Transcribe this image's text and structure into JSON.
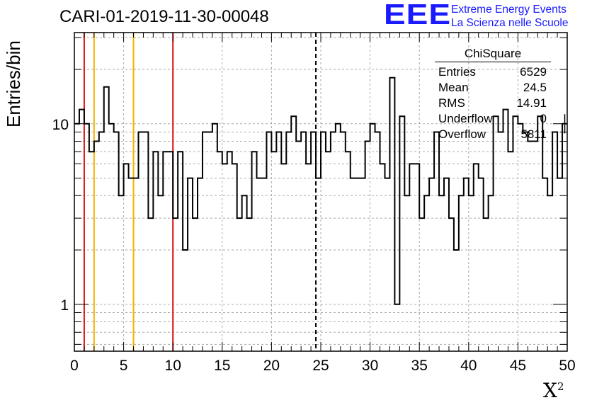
{
  "header": {
    "title": "CARI-01-2019-11-30-00048",
    "logo_mark": "EEE",
    "logo_line1": "Extreme Energy Events",
    "logo_line2": "La Scienza nelle Scuole"
  },
  "stats_box": {
    "title": "ChiSquare",
    "rows": [
      {
        "label": "Entries",
        "value": "6529"
      },
      {
        "label": "Mean",
        "value": "24.5"
      },
      {
        "label": "RMS",
        "value": "14.91"
      },
      {
        "label": "Underflow",
        "value": "0"
      },
      {
        "label": "Overflow",
        "value": "5811"
      }
    ]
  },
  "colors": {
    "histogram": "#000000",
    "red_lines": "#dd1111",
    "yellow_lines": "#f0b400",
    "mean_line": "#000000",
    "grid": "#aaaaaa"
  },
  "chart_data": {
    "type": "bar",
    "style": "step-histogram",
    "title": "CARI-01-2019-11-30-00048",
    "xlabel": "X",
    "xlabel_superscript": "2",
    "ylabel": "Entries/bin",
    "xlim": [
      0,
      50
    ],
    "ylim": [
      0.55,
      32
    ],
    "yscale": "log",
    "grid": true,
    "bin_width": 0.5,
    "x_ticks": [
      "0",
      "5",
      "10",
      "15",
      "20",
      "25",
      "30",
      "35",
      "40",
      "45",
      "50"
    ],
    "y_ticks": [
      "1",
      "10"
    ],
    "bin_values": [
      10,
      12,
      10,
      7,
      8,
      9,
      16,
      10,
      9,
      4,
      6,
      5,
      5,
      9,
      9,
      3,
      7,
      4,
      7,
      7,
      3,
      7,
      2,
      5,
      3,
      5,
      9,
      9,
      10,
      7,
      6,
      7,
      6,
      3,
      4,
      3,
      7,
      5,
      5,
      9,
      7,
      9,
      6,
      9,
      11,
      8,
      9,
      6,
      9,
      5,
      9,
      7,
      9,
      10,
      9,
      7,
      5,
      5,
      5,
      8,
      10,
      9,
      6,
      5,
      18,
      1,
      11,
      4,
      6,
      6,
      3,
      4,
      5,
      9,
      4,
      5,
      3,
      2,
      4,
      5,
      4,
      6,
      5,
      3,
      4,
      11,
      9,
      12,
      7,
      11,
      10,
      9,
      8,
      8,
      11,
      5,
      4,
      9,
      5,
      10
    ],
    "vertical_lines": [
      {
        "x": 1,
        "color": "red"
      },
      {
        "x": 2,
        "color": "yellow"
      },
      {
        "x": 6,
        "color": "yellow"
      },
      {
        "x": 10,
        "color": "red"
      },
      {
        "x": 24.5,
        "color": "black",
        "dashed": true
      }
    ]
  }
}
